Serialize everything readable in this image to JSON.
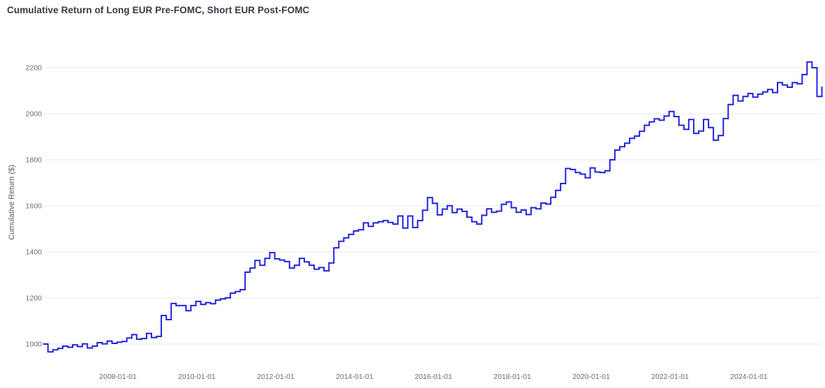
{
  "title": "Cumulative Return of Long EUR Pre-FOMC, Short EUR Post-FOMC",
  "colors": {
    "line": "#2222dd",
    "grid": "#e8e8e8",
    "tick_label": "#6a6b76",
    "axis_title": "#5a5b66",
    "title": "#363a45",
    "background": "#ffffff"
  },
  "chart_data": {
    "type": "line",
    "title": "Cumulative Return of Long EUR Pre-FOMC, Short EUR Post-FOMC",
    "xlabel": "",
    "ylabel": "Cumulative Return ($)",
    "step": true,
    "grid": "horizontal-only",
    "legend_position": "none",
    "x_tick_labels": [
      "2008-01-01",
      "2010-01-01",
      "2012-01-01",
      "2014-01-01",
      "2016-01-01",
      "2018-01-01",
      "2020-01-01",
      "2022-01-01",
      "2024-01-01"
    ],
    "x_tick_years": [
      2008,
      2010,
      2012,
      2014,
      2016,
      2018,
      2020,
      2022,
      2024
    ],
    "y_ticks": [
      1000,
      1200,
      1400,
      1600,
      1800,
      2000,
      2200
    ],
    "ylim": [
      940,
      2270
    ],
    "xlim": [
      2005.95,
      2025.95
    ],
    "x_start": 2006.1,
    "x_interval_years": 0.125,
    "x_unit": "FOMC meeting dates (~8 per year), 2006 - 2025",
    "series": [
      {
        "name": "Cumulative Return ($)",
        "values": [
          1000,
          966,
          975,
          981,
          991,
          986,
          996,
          989,
          1001,
          983,
          991,
          1006,
          1001,
          1013,
          1003,
          1008,
          1011,
          1026,
          1041,
          1021,
          1024,
          1046,
          1028,
          1033,
          1124,
          1106,
          1176,
          1167,
          1167,
          1145,
          1167,
          1185,
          1172,
          1180,
          1175,
          1191,
          1196,
          1201,
          1221,
          1228,
          1236,
          1312,
          1330,
          1363,
          1342,
          1372,
          1397,
          1370,
          1365,
          1358,
          1330,
          1342,
          1372,
          1357,
          1342,
          1325,
          1332,
          1318,
          1352,
          1418,
          1446,
          1461,
          1476,
          1491,
          1496,
          1526,
          1511,
          1526,
          1531,
          1536,
          1528,
          1521,
          1556,
          1504,
          1556,
          1506,
          1536,
          1581,
          1636,
          1611,
          1561,
          1586,
          1601,
          1571,
          1586,
          1576,
          1551,
          1531,
          1521,
          1559,
          1587,
          1572,
          1577,
          1607,
          1617,
          1592,
          1572,
          1582,
          1562,
          1592,
          1587,
          1612,
          1608,
          1637,
          1667,
          1697,
          1762,
          1758,
          1745,
          1738,
          1722,
          1765,
          1747,
          1745,
          1752,
          1800,
          1842,
          1857,
          1872,
          1893,
          1903,
          1924,
          1950,
          1965,
          1978,
          1972,
          1990,
          2010,
          1988,
          1950,
          1932,
          1975,
          1915,
          1925,
          1975,
          1940,
          1885,
          1905,
          1979,
          2040,
          2080,
          2055,
          2075,
          2088,
          2072,
          2085,
          2095,
          2105,
          2092,
          2135,
          2125,
          2115,
          2135,
          2130,
          2170,
          2225,
          2200,
          2075,
          2118
        ]
      }
    ]
  }
}
